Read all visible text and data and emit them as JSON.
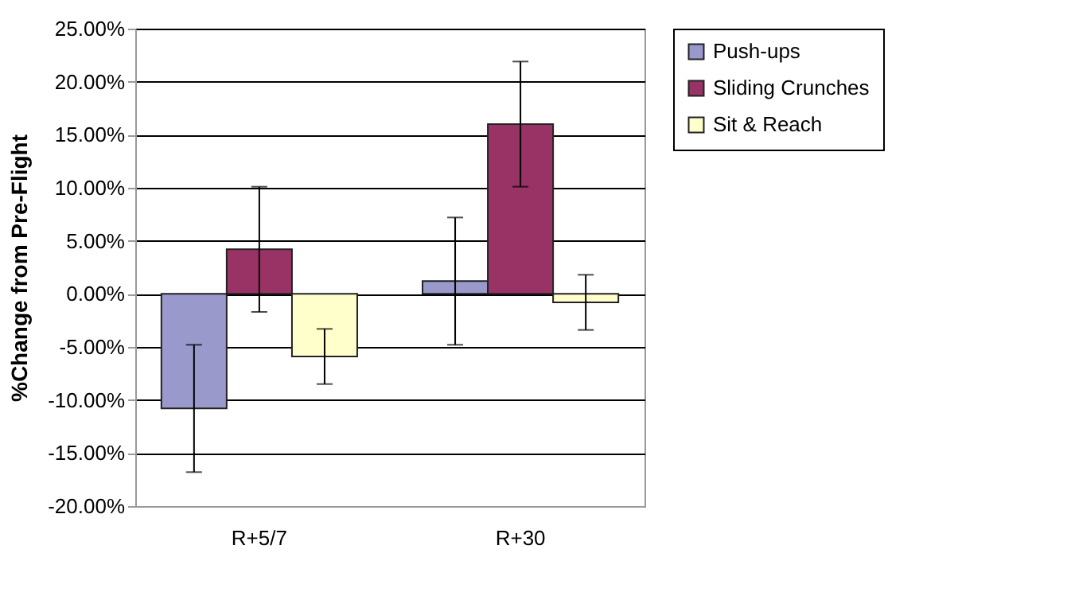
{
  "chart_data": {
    "type": "bar",
    "ylabel": "%Change from Pre-Flight",
    "categories": [
      "R+5/7",
      "R+30"
    ],
    "series": [
      {
        "name": "Push-ups",
        "color": "#9999cc",
        "values": [
          -10.8,
          1.2
        ],
        "errors": [
          6.0,
          6.0
        ]
      },
      {
        "name": "Sliding Crunches",
        "color": "#993366",
        "values": [
          4.2,
          16.0
        ],
        "errors": [
          5.9,
          5.9
        ]
      },
      {
        "name": "Sit & Reach",
        "color": "#ffffcc",
        "values": [
          -5.9,
          -0.8
        ],
        "errors": [
          2.6,
          2.6
        ]
      }
    ],
    "ylim": [
      -20,
      25
    ],
    "yticks": [
      {
        "value": -20,
        "label": "-20.00%"
      },
      {
        "value": -15,
        "label": "-15.00%"
      },
      {
        "value": -10,
        "label": "-10.00%"
      },
      {
        "value": -5,
        "label": "-5.00%"
      },
      {
        "value": 0,
        "label": "0.00%"
      },
      {
        "value": 5,
        "label": "5.00%"
      },
      {
        "value": 10,
        "label": "10.00%"
      },
      {
        "value": 15,
        "label": "15.00%"
      },
      {
        "value": 20,
        "label": "20.00%"
      },
      {
        "value": 25,
        "label": "25.00%"
      }
    ],
    "grid": "y",
    "legend": "right"
  }
}
